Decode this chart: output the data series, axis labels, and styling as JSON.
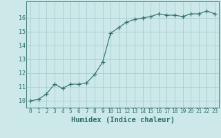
{
  "x": [
    0,
    1,
    2,
    3,
    4,
    5,
    6,
    7,
    8,
    9,
    10,
    11,
    12,
    13,
    14,
    15,
    16,
    17,
    18,
    19,
    20,
    21,
    22,
    23
  ],
  "y": [
    10.0,
    10.1,
    10.5,
    11.2,
    10.9,
    11.2,
    11.2,
    11.3,
    11.9,
    12.8,
    14.9,
    15.3,
    15.7,
    15.9,
    16.0,
    16.1,
    16.3,
    16.2,
    16.2,
    16.1,
    16.3,
    16.3,
    16.5,
    16.3
  ],
  "line_color": "#2e6e68",
  "marker": "+",
  "marker_size": 4,
  "marker_color": "#2e6e68",
  "bg_color": "#cce8e8",
  "grid_color": "#aacece",
  "axis_color": "#2e6e68",
  "xlabel": "Humidex (Indice chaleur)",
  "xlabel_fontsize": 7.5,
  "ylim": [
    9.5,
    17.2
  ],
  "xlim": [
    -0.5,
    23.5
  ],
  "yticks": [
    10,
    11,
    12,
    13,
    14,
    15,
    16
  ],
  "xticks": [
    0,
    1,
    2,
    3,
    4,
    5,
    6,
    7,
    8,
    9,
    10,
    11,
    12,
    13,
    14,
    15,
    16,
    17,
    18,
    19,
    20,
    21,
    22,
    23
  ],
  "tick_fontsize": 5.5
}
